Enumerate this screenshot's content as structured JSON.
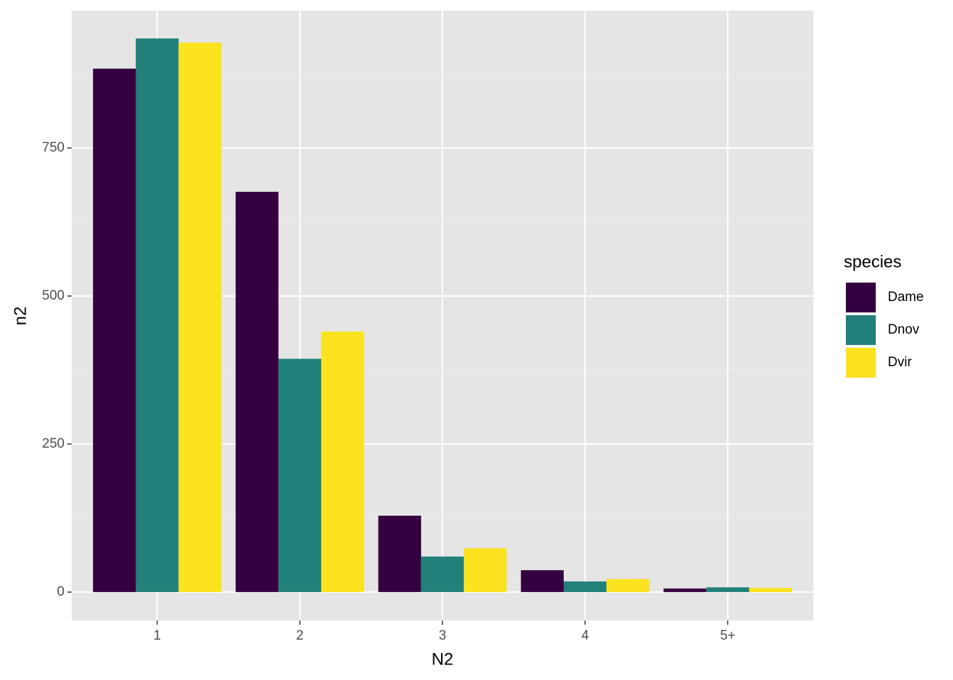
{
  "chart_data": {
    "type": "bar",
    "x_label": "N2",
    "y_label": "n2",
    "legend_title": "species",
    "categories": [
      "1",
      "2",
      "3",
      "4",
      "5+"
    ],
    "series": [
      {
        "name": "Dame",
        "color": "#350040",
        "values": [
          884,
          676,
          129,
          37,
          6
        ]
      },
      {
        "name": "Dnov",
        "color": "#21807a",
        "values": [
          935,
          394,
          60,
          18,
          8
        ]
      },
      {
        "name": "Dvir",
        "color": "#fbe31f",
        "values": [
          928,
          440,
          74,
          22,
          7
        ]
      }
    ],
    "ylim": [
      -48,
      982
    ],
    "yticks": [
      0,
      250,
      500,
      750
    ],
    "minor_yticks": [
      125,
      375,
      625,
      875
    ],
    "grid": true,
    "legend": "right"
  }
}
